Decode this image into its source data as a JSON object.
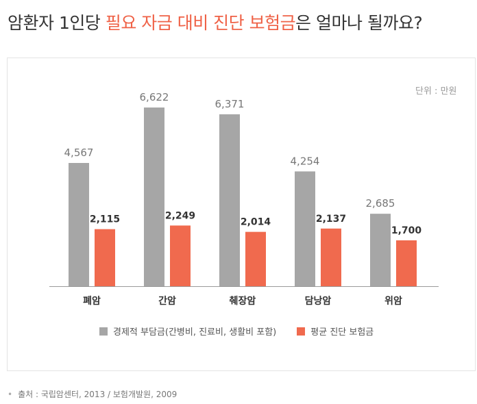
{
  "title": {
    "prefix": "암환자 1인당 ",
    "highlight": "필요 자금 대비 진단 보험금",
    "suffix": "은 얼마나 될까요?"
  },
  "unit_label": "단위 : 만원",
  "source": "출처 : 국립암센터, 2013 / 보험개발원, 2009",
  "colors": {
    "accent": "#ef6146",
    "gray_bar": "#a6a6a6",
    "red_bar": "#f06a4e"
  },
  "chart_data": {
    "type": "bar",
    "categories": [
      "폐암",
      "간암",
      "췌장암",
      "담낭암",
      "위암"
    ],
    "series": [
      {
        "name": "경제적 부담금(간병비, 진료비, 생활비 포함)",
        "values": [
          4567,
          6622,
          6371,
          4254,
          2685
        ],
        "labels": [
          "4,567",
          "6,622",
          "6,371",
          "4,254",
          "2,685"
        ]
      },
      {
        "name": "평균 진단 보험금",
        "values": [
          2115,
          2249,
          2014,
          2137,
          1700
        ],
        "labels": [
          "2,115",
          "2,249",
          "2,014",
          "2,137",
          "1,700"
        ]
      }
    ],
    "ylim": [
      0,
      7000
    ],
    "grid": false,
    "legend": "bottom-center"
  }
}
